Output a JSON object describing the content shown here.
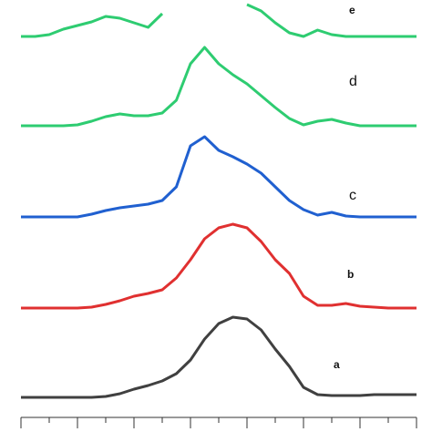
{
  "chart_data": {
    "type": "line",
    "x": [
      0,
      0.5,
      1,
      1.5,
      2,
      2.5,
      3,
      3.5,
      4,
      4.5,
      5,
      5.5,
      6,
      6.5,
      7,
      7.5,
      8,
      8.5,
      9,
      9.5,
      10,
      10.5,
      11,
      11.5,
      12,
      12.5,
      13,
      13.5,
      14
    ],
    "xlim": [
      0,
      14
    ],
    "xticks": [
      0,
      1,
      2,
      3,
      4,
      5,
      6,
      7,
      8,
      9,
      10,
      11,
      12,
      13,
      14
    ],
    "ylim": [
      0,
      474
    ],
    "series": [
      {
        "name": "a",
        "color": "#404040",
        "values": [
          38,
          38,
          38,
          38,
          38,
          38,
          39,
          42,
          47,
          51,
          56,
          64,
          79,
          102,
          119,
          126,
          124,
          112,
          91,
          72,
          49,
          41,
          40,
          40,
          40,
          41,
          41,
          41,
          41
        ]
      },
      {
        "name": "b",
        "color": "#e03030",
        "values": [
          136,
          136,
          136,
          136,
          136,
          137,
          140,
          144,
          149,
          152,
          156,
          169,
          189,
          212,
          224,
          228,
          224,
          209,
          189,
          174,
          149,
          139,
          139,
          141,
          138,
          137,
          136,
          136,
          136
        ]
      },
      {
        "name": "c",
        "color": "#2060d0",
        "values": [
          236,
          236,
          236,
          236,
          236,
          239,
          243,
          246,
          248,
          250,
          254,
          269,
          314,
          324,
          309,
          302,
          294,
          284,
          269,
          254,
          244,
          238,
          241,
          237,
          236,
          236,
          236,
          236,
          236
        ]
      },
      {
        "name": "d",
        "color": "#2ecc71",
        "values": [
          336,
          336,
          336,
          336,
          337,
          341,
          346,
          349,
          347,
          347,
          350,
          364,
          404,
          422,
          404,
          392,
          382,
          369,
          356,
          344,
          337,
          341,
          343,
          339,
          336,
          336,
          336,
          336,
          336
        ]
      },
      {
        "name": "e",
        "color": "#2ecc71",
        "values": [
          434,
          434,
          436,
          442,
          446,
          450,
          456,
          454,
          449,
          444,
          459,
          null,
          null,
          null,
          null,
          null,
          469,
          462,
          449,
          438,
          434,
          441,
          436,
          434,
          434,
          434,
          434,
          434,
          434
        ]
      }
    ]
  }
}
